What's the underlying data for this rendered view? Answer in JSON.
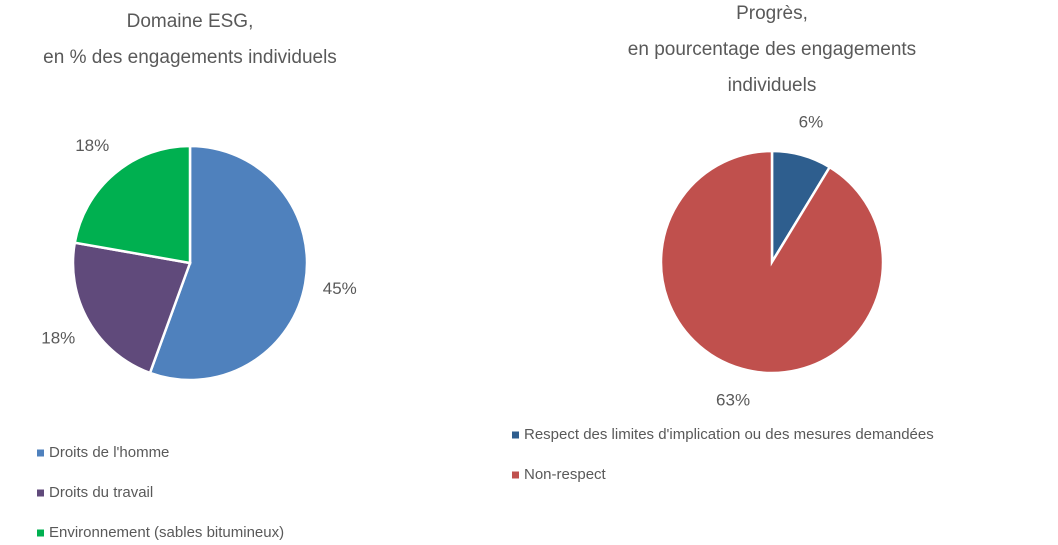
{
  "chart_data": [
    {
      "type": "pie",
      "title": [
        "Domaine ESG,",
        "en % des engagements individuels"
      ],
      "categories": [
        "Droits de l'homme",
        "Droits du travail",
        "Environnement (sables bitumineux)"
      ],
      "values": [
        45,
        18,
        18
      ],
      "value_labels": [
        "45%",
        "18%",
        "18%"
      ],
      "colors": [
        "#4f81bd",
        "#604a7b",
        "#00b050"
      ]
    },
    {
      "type": "pie",
      "title": [
        "Progrès,",
        "en pourcentage des engagements",
        "individuels"
      ],
      "categories": [
        "Respect des limites d'implication ou des mesures demandées",
        "Non-respect"
      ],
      "values": [
        6,
        63
      ],
      "value_labels": [
        "6%",
        "63%"
      ],
      "colors": [
        "#2e5e8e",
        "#c0504d"
      ]
    }
  ]
}
